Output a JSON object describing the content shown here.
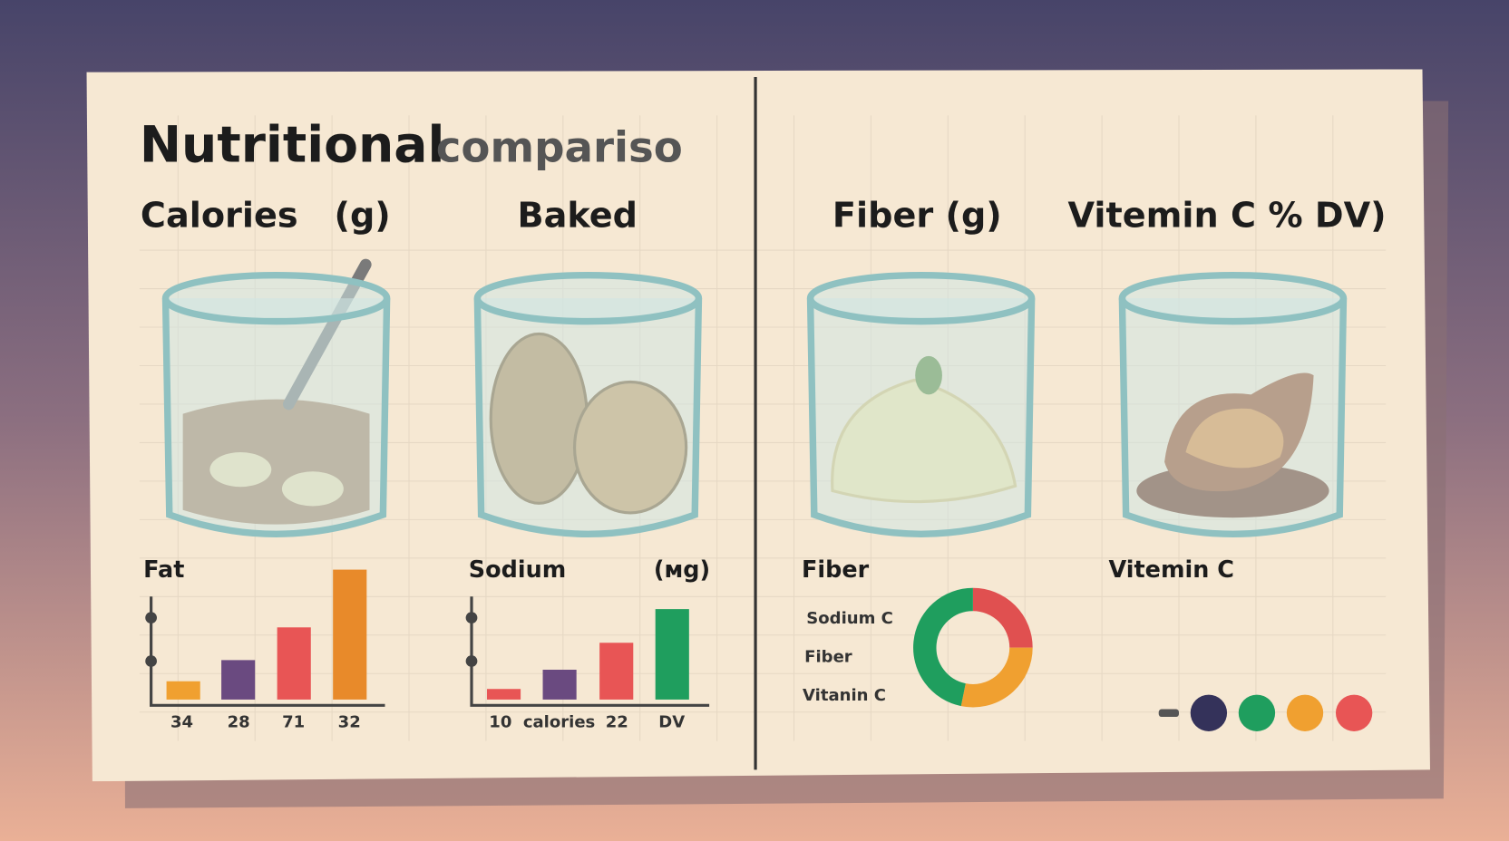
{
  "header": {
    "title_bold": "Nutritional",
    "title_light": "compariso"
  },
  "panels": [
    {
      "heading": "Calories   (g)"
    },
    {
      "heading": "Baked"
    },
    {
      "heading": "Fiber (g)"
    },
    {
      "heading": "Vitemin C % DV)"
    }
  ],
  "bar_charts": [
    {
      "label": "Fat",
      "tick_labels": [
        "34",
        "28",
        "71",
        "32"
      ]
    },
    {
      "label": "Sodium",
      "unit": "(мg)",
      "tick_labels": [
        "10",
        "calories",
        "22",
        "DV"
      ]
    }
  ],
  "donut": {
    "label": "Fiber",
    "legend": [
      "Sodium C",
      "Fiber",
      "Vitanin C"
    ]
  },
  "vitamin": {
    "label": "Vitemin C"
  }
}
